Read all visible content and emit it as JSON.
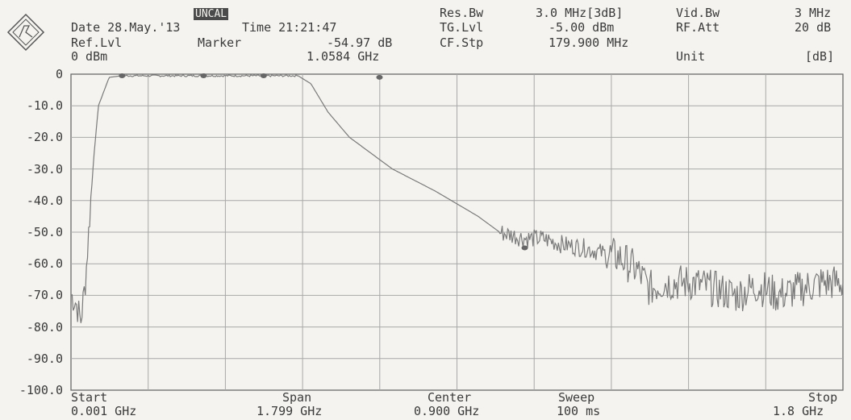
{
  "header": {
    "date_label": "Date 28.May.'13",
    "time_label": "Time 21:21:47",
    "uncal_badge": "UNCAL",
    "ref_level_label": "Ref.Lvl",
    "ref_level_value": "0 dBm",
    "marker_label": "Marker",
    "marker_level": "-54.97 dB",
    "marker_freq": "1.0584 GHz",
    "res_bw_label": "Res.Bw",
    "res_bw_value": "3.0 MHz[3dB]",
    "tg_lvl_label": "TG.Lvl",
    "tg_lvl_value": "-5.00 dBm",
    "cf_stp_label": "CF.Stp",
    "cf_stp_value": "179.900 MHz",
    "vid_bw_label": "Vid.Bw",
    "vid_bw_value": "3 MHz",
    "rf_att_label": "RF.Att",
    "rf_att_value": "20 dB",
    "unit_label": "Unit",
    "unit_value": "[dB]"
  },
  "footer": {
    "start_label": "Start",
    "start_value": "0.001 GHz",
    "span_label": "Span",
    "span_value": "1.799 GHz",
    "center_label": "Center",
    "center_value": "0.900 GHz",
    "sweep_label": "Sweep",
    "sweep_value": "100 ms",
    "stop_label": "Stop",
    "stop_value": "1.8 GHz"
  },
  "colors": {
    "trace": "#7a7a7a",
    "grid": "#a8a8a8",
    "frame": "#6a6a6a"
  },
  "chart_data": {
    "type": "line",
    "title": "",
    "xlabel": "",
    "ylabel": "",
    "xlim": [
      0.001,
      1.8
    ],
    "ylim": [
      -100,
      0
    ],
    "y_tick_labels": [
      "0",
      "-10.0",
      "-20.0",
      "-30.0",
      "-40.0",
      "-50.0",
      "-60.0",
      "-70.0",
      "-80.0",
      "-90.0",
      "-100.0"
    ],
    "grid": true,
    "series": [
      {
        "x": [
          0.001,
          0.012,
          0.024,
          0.035,
          0.047,
          0.055,
          0.065,
          0.09,
          0.12,
          0.35,
          0.53,
          0.56,
          0.6,
          0.65,
          0.75,
          0.85,
          0.9,
          0.95,
          0.97,
          1.0,
          1.06,
          1.1,
          1.15,
          1.2,
          1.25,
          1.28,
          1.32,
          1.35,
          1.38,
          1.45,
          1.5,
          1.55,
          1.6,
          1.65,
          1.7,
          1.75,
          1.8
        ],
        "y": [
          -70,
          -72,
          -78,
          -65,
          -40,
          -25,
          -10,
          -1,
          -0.5,
          -0.5,
          -0.5,
          -3,
          -12,
          -20,
          -30,
          -37,
          -41,
          -45,
          -47,
          -50,
          -52,
          -52,
          -54,
          -55,
          -57,
          -58,
          -62,
          -68,
          -66,
          -66,
          -68,
          -70,
          -67,
          -70,
          -68,
          -66,
          -66
        ]
      }
    ],
    "markers": [
      {
        "x": 0.12,
        "y": -0.5
      },
      {
        "x": 0.31,
        "y": -0.5
      },
      {
        "x": 0.45,
        "y": -0.5
      },
      {
        "x": 0.72,
        "y": -1
      },
      {
        "x": 1.0584,
        "y": -54.97
      }
    ]
  }
}
